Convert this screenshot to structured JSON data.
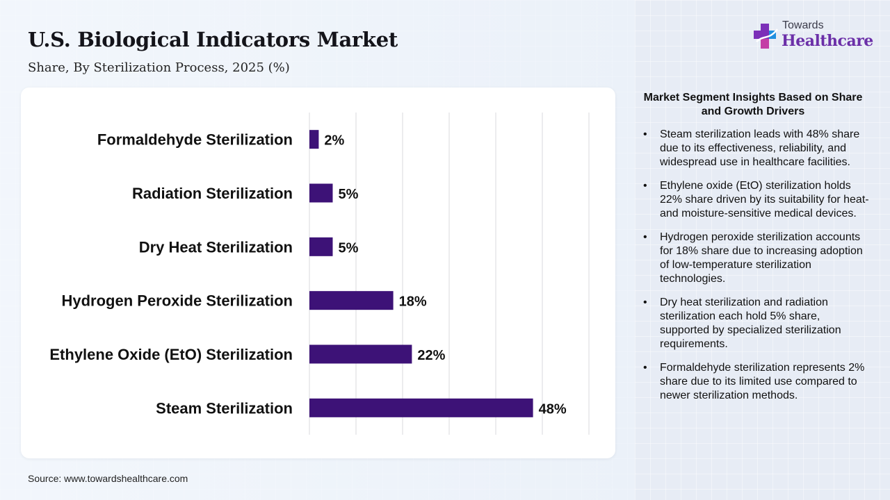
{
  "header": {
    "title": "U.S. Biological Indicators Market",
    "subtitle": "Share, By Sterilization Process, 2025 (%)"
  },
  "logo": {
    "top": "Towards",
    "bottom": "Healthcare",
    "icon": "cross-icon"
  },
  "source": "Source: www.towardshealthcare.com",
  "insights": {
    "title": "Market Segment Insights Based on Share and Growth Drivers",
    "items": [
      "Steam sterilization leads with 48% share due to its effectiveness, reliability, and widespread use in healthcare facilities.",
      "Ethylene oxide (EtO) sterilization holds 22% share driven by its suitability for heat- and moisture-sensitive medical devices.",
      "Hydrogen peroxide sterilization accounts for 18% share due to increasing adoption of low-temperature sterilization technologies.",
      "Dry heat sterilization and radiation sterilization each hold 5% share, supported by specialized sterilization requirements.",
      "Formaldehyde sterilization represents 2% share due to its limited use compared to newer sterilization methods."
    ]
  },
  "chart_data": {
    "type": "bar",
    "orientation": "horizontal",
    "title": "U.S. Biological Indicators Market",
    "subtitle": "Share, By Sterilization Process, 2025 (%)",
    "categories": [
      "Formaldehyde Sterilization",
      "Radiation Sterilization",
      "Dry Heat Sterilization",
      "Hydrogen Peroxide Sterilization",
      "Ethylene Oxide (EtO) Sterilization",
      "Steam Sterilization"
    ],
    "values": [
      2,
      5,
      5,
      18,
      22,
      48
    ],
    "data_labels": [
      "2%",
      "5%",
      "5%",
      "18%",
      "22%",
      "48%"
    ],
    "xlim": [
      0,
      60
    ],
    "grid": "vertical",
    "legend": "none",
    "bar_color": "#3d1277"
  }
}
